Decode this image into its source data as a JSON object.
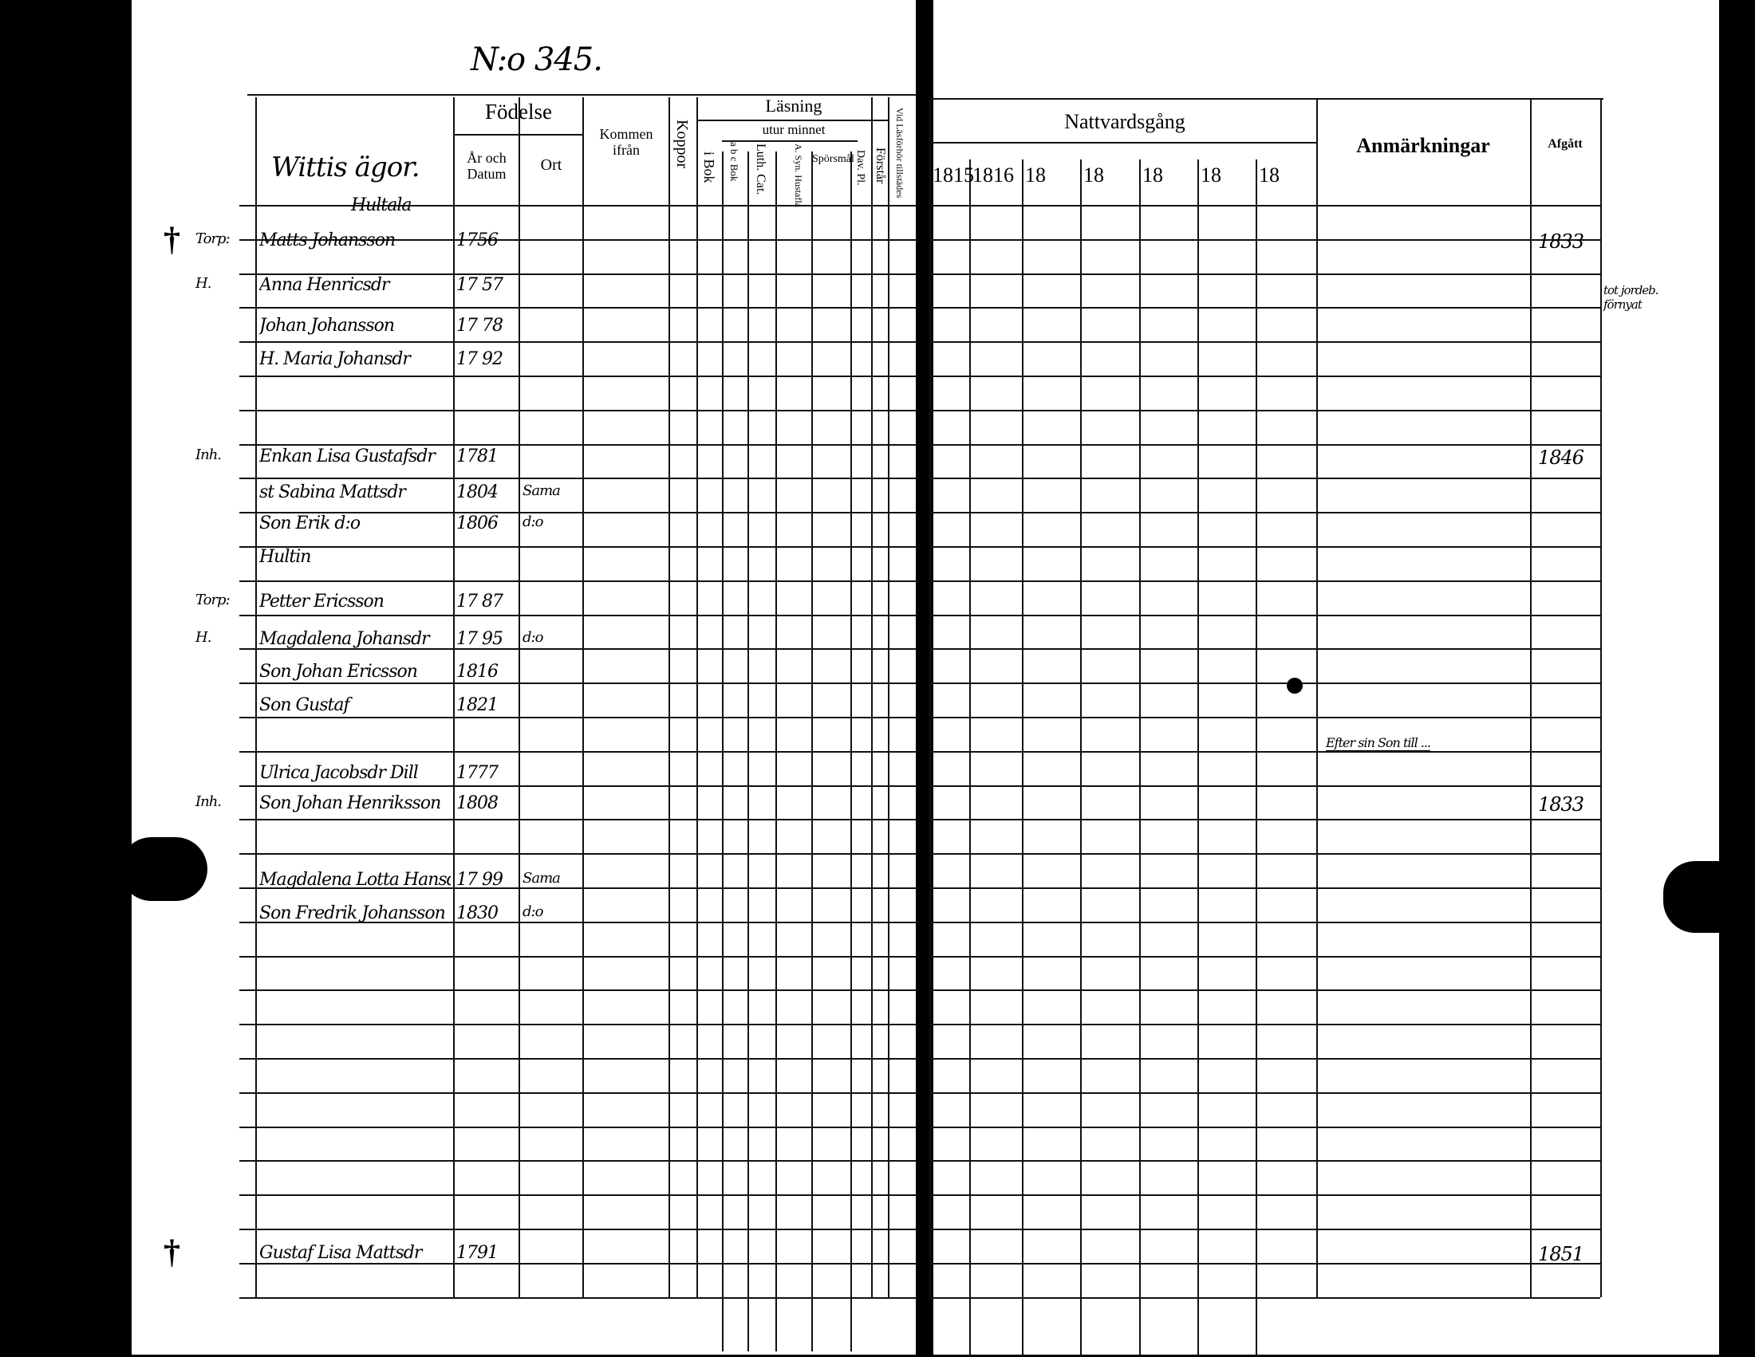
{
  "page_number": "N:o 345.",
  "left_header": {
    "place": "Wittis ägor.",
    "subplace": "Hultala",
    "fodelse": "Födelse",
    "ar_och_datum": "År och Datum",
    "ort": "Ort",
    "kommen_ifran": "Kommen ifrån",
    "koppor": "Koppor",
    "lasning": "Läsning",
    "utur_minnet": "utur minnet",
    "i_bok": "i Bok",
    "abc_bok": "a b c Bok",
    "luth_cat": "Luth. Cat.",
    "a_syn_husta": "A. Syn. Hustafla",
    "sporsmal": "Spörsmål",
    "dav_pl": "Dav. Pl.",
    "forstar": "Förstår",
    "vid_husforhor": "Vid Läsförhör tillstädes"
  },
  "right_header": {
    "nattvardsgang": "Nattvardsgång",
    "years": [
      "1815",
      "1816",
      "18",
      "18",
      "18",
      "18",
      "18"
    ],
    "anmarkningar": "Anmärkningar",
    "afgatt": "Afgått"
  },
  "entries": [
    {
      "mark": "†",
      "title": "Torp:",
      "name": "Matts Johansson",
      "born": "1756",
      "ort": "",
      "from": "",
      "afgatt": "1833"
    },
    {
      "mark": "",
      "title": "H.",
      "name": "Anna Henricsdr",
      "born": "17 57",
      "ort": "",
      "from": "",
      "afgatt": ""
    },
    {
      "mark": "",
      "title": "",
      "name": "Johan Johansson",
      "born": "17 78",
      "ort": "",
      "from": "",
      "afgatt": ""
    },
    {
      "mark": "",
      "title": "",
      "name": "H. Maria Johansdr",
      "born": "17 92",
      "ort": "",
      "from": "",
      "afgatt": ""
    },
    {
      "mark": "",
      "title": "Inh.",
      "name": "Enkan Lisa Gustafsdr",
      "born": "1781",
      "ort": "",
      "from": "",
      "afgatt": "1846"
    },
    {
      "mark": "",
      "title": "",
      "name": "st Sabina Mattsdr",
      "born": "1804",
      "ort": "Sama",
      "from": "",
      "afgatt": ""
    },
    {
      "mark": "",
      "title": "",
      "name": "Son Erik  d:o",
      "born": "1806",
      "ort": "d:o",
      "from": "",
      "afgatt": ""
    },
    {
      "mark": "",
      "title": "",
      "name": "Hultin",
      "born": "",
      "ort": "",
      "from": "",
      "afgatt": ""
    },
    {
      "mark": "",
      "title": "Torp:",
      "name": "Petter Ericsson",
      "born": "17 87",
      "ort": "",
      "from": "",
      "afgatt": ""
    },
    {
      "mark": "",
      "title": "H.",
      "name": "Magdalena Johansdr",
      "born": "17 95",
      "ort": "d:o",
      "from": "",
      "afgatt": ""
    },
    {
      "mark": "",
      "title": "",
      "name": "Son Johan Ericsson",
      "born": "1816",
      "ort": "",
      "from": "",
      "afgatt": ""
    },
    {
      "mark": "",
      "title": "",
      "name": "Son Gustaf",
      "born": "1821",
      "ort": "",
      "from": "",
      "afgatt": ""
    },
    {
      "mark": "",
      "title": "",
      "name": "Ulrica Jacobsdr Dill",
      "born": "1777",
      "ort": "",
      "from": "",
      "afgatt": ""
    },
    {
      "mark": "",
      "title": "Inh.",
      "name": "Son Johan Henriksson",
      "born": "1808",
      "ort": "",
      "from": "",
      "afgatt": "1833"
    },
    {
      "mark": "",
      "title": "",
      "name": "Magdalena Lotta Hansdr",
      "born": "17 99",
      "ort": "Sama",
      "from": "",
      "afgatt": ""
    },
    {
      "mark": "",
      "title": "",
      "name": "Son Fredrik Johansson",
      "born": "1830",
      "ort": "d:o",
      "from": "",
      "afgatt": ""
    },
    {
      "mark": "†",
      "title": "",
      "name": "Gustaf Lisa Mattsdr",
      "born": "1791",
      "ort": "",
      "from": "",
      "afgatt": "1851"
    }
  ],
  "margin_note": "tot jordeb. förnyat",
  "remark_ulrica": "Efter sin Son till ..."
}
